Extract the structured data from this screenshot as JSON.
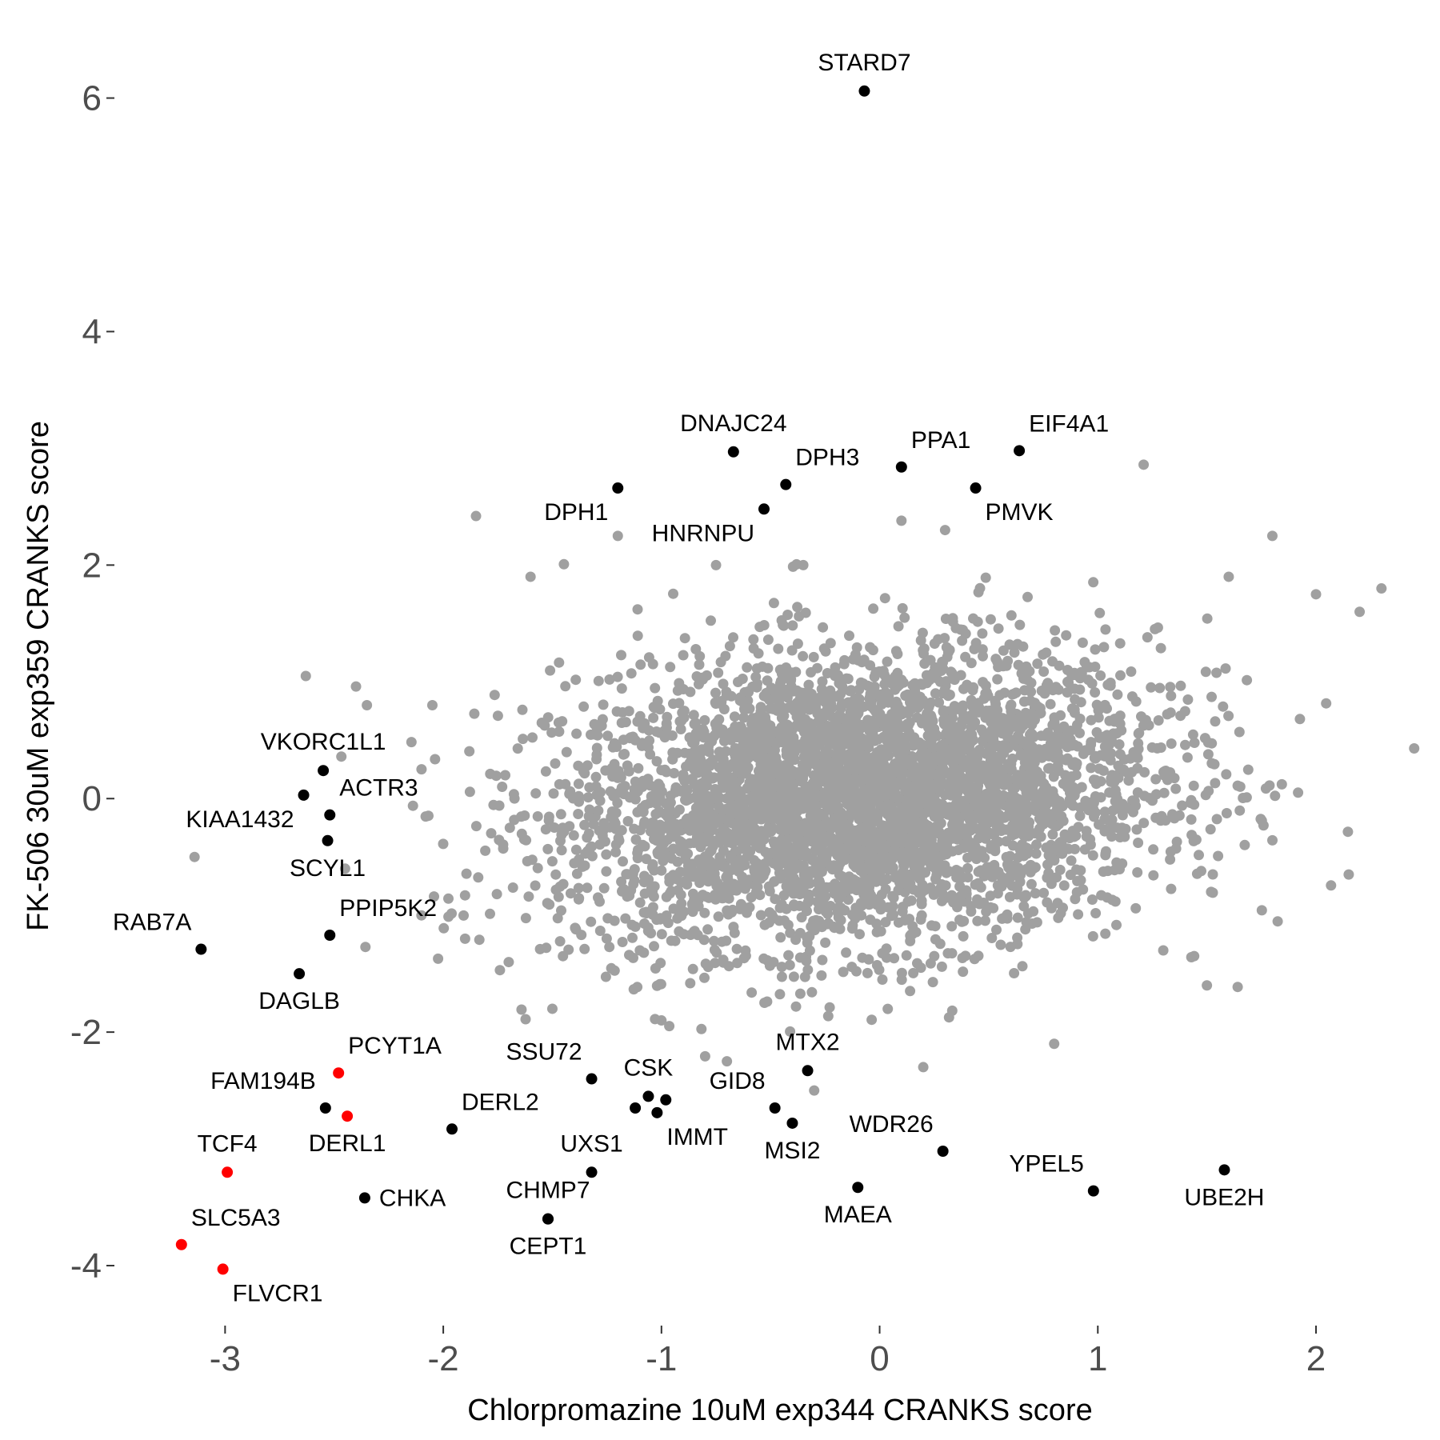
{
  "chart_data": {
    "type": "scatter",
    "xlabel": "Chlorpromazine 10uM exp344 CRANKS score",
    "ylabel": "FK-506 30uM exp359 CRANKS score",
    "xlim": [
      -3.5,
      2.55
    ],
    "ylim": [
      -4.5,
      6.6
    ],
    "x_ticks": [
      -3,
      -2,
      -1,
      0,
      1,
      2
    ],
    "y_ticks": [
      -4,
      -2,
      0,
      2,
      4,
      6
    ],
    "x_tick_labels": [
      "-3",
      "-2",
      "-1",
      "0",
      "1",
      "2"
    ],
    "y_tick_labels": [
      "-4",
      "-2",
      "0",
      "2",
      "4",
      "6"
    ],
    "grid": false,
    "colors": {
      "background_points": "#a0a0a0",
      "highlight_black": "#000000",
      "highlight_red": "#ff0000"
    },
    "background_cloud": {
      "description_free": true,
      "center": [
        -0.1,
        0.0
      ],
      "spread": [
        0.68,
        0.62
      ],
      "outliers": [
        [
          -1.85,
          2.42
        ],
        [
          -1.2,
          2.25
        ],
        [
          1.21,
          2.86
        ],
        [
          1.8,
          2.25
        ],
        [
          2.3,
          1.8
        ],
        [
          2.45,
          0.43
        ],
        [
          2.15,
          -0.65
        ],
        [
          -2.63,
          1.05
        ],
        [
          -3.14,
          -0.5
        ],
        [
          -2.35,
          0.8
        ],
        [
          -1.6,
          1.9
        ],
        [
          -2.05,
          0.8
        ],
        [
          0.1,
          2.38
        ],
        [
          0.3,
          2.3
        ],
        [
          -0.35,
          2.0
        ],
        [
          -0.75,
          2.0
        ],
        [
          1.6,
          1.9
        ],
        [
          2.0,
          1.75
        ],
        [
          2.2,
          1.6
        ],
        [
          1.3,
          -1.3
        ],
        [
          -1.0,
          -1.9
        ],
        [
          -0.3,
          -2.5
        ],
        [
          -0.7,
          -2.25
        ],
        [
          0.2,
          -2.3
        ],
        [
          0.8,
          -2.1
        ],
        [
          -2.45,
          -0.6
        ],
        [
          -2.1,
          -1.0
        ],
        [
          -1.9,
          -1.2
        ],
        [
          -1.7,
          -1.4
        ],
        [
          -1.5,
          -1.8
        ],
        [
          1.5,
          -1.6
        ]
      ]
    },
    "highlighted_genes": [
      {
        "name": "STARD7",
        "x": -0.07,
        "y": 6.06,
        "color": "black",
        "label_pos": "above"
      },
      {
        "name": "DNAJC24",
        "x": -0.67,
        "y": 2.97,
        "color": "black",
        "label_pos": "above"
      },
      {
        "name": "DPH3",
        "x": -0.43,
        "y": 2.69,
        "color": "black",
        "label_pos": "above-right"
      },
      {
        "name": "PPA1",
        "x": 0.1,
        "y": 2.84,
        "color": "black",
        "label_pos": "above-right"
      },
      {
        "name": "EIF4A1",
        "x": 0.64,
        "y": 2.98,
        "color": "black",
        "label_pos": "above-right"
      },
      {
        "name": "DPH1",
        "x": -1.2,
        "y": 2.66,
        "color": "black",
        "label_pos": "below-left"
      },
      {
        "name": "HNRNPU",
        "x": -0.53,
        "y": 2.48,
        "color": "black",
        "label_pos": "below-left"
      },
      {
        "name": "PMVK",
        "x": 0.44,
        "y": 2.66,
        "color": "black",
        "label_pos": "below-right"
      },
      {
        "name": "VKORC1L1",
        "x": -2.55,
        "y": 0.24,
        "color": "black",
        "label_pos": "above"
      },
      {
        "name": "ACTR3",
        "x": -2.52,
        "y": -0.14,
        "color": "black",
        "label_pos": "above-right"
      },
      {
        "name": "KIAA1432",
        "x": -2.64,
        "y": 0.03,
        "color": "black",
        "label_pos": "below-left"
      },
      {
        "name": "SCYL1",
        "x": -2.53,
        "y": -0.36,
        "color": "black",
        "label_pos": "below"
      },
      {
        "name": "PPIP5K2",
        "x": -2.52,
        "y": -1.17,
        "color": "black",
        "label_pos": "above-right"
      },
      {
        "name": "RAB7A",
        "x": -3.11,
        "y": -1.29,
        "color": "black",
        "label_pos": "above-left"
      },
      {
        "name": "DAGLB",
        "x": -2.66,
        "y": -1.5,
        "color": "black",
        "label_pos": "below"
      },
      {
        "name": "PCYT1A",
        "x": -2.48,
        "y": -2.35,
        "color": "red",
        "label_pos": "above-right"
      },
      {
        "name": "FAM194B",
        "x": -2.54,
        "y": -2.65,
        "color": "black",
        "label_pos": "above-left"
      },
      {
        "name": "DERL1",
        "x": -2.44,
        "y": -2.72,
        "color": "red",
        "label_pos": "below"
      },
      {
        "name": "DERL2",
        "x": -1.96,
        "y": -2.83,
        "color": "black",
        "label_pos": "above-right"
      },
      {
        "name": "TCF4",
        "x": -2.99,
        "y": -3.2,
        "color": "red",
        "label_pos": "above"
      },
      {
        "name": "CHKA",
        "x": -2.36,
        "y": -3.42,
        "color": "black",
        "label_pos": "right"
      },
      {
        "name": "SLC5A3",
        "x": -3.2,
        "y": -3.82,
        "color": "red",
        "label_pos": "above-right"
      },
      {
        "name": "FLVCR1",
        "x": -3.01,
        "y": -4.03,
        "color": "red",
        "label_pos": "below-right"
      },
      {
        "name": "SSU72",
        "x": -1.32,
        "y": -2.4,
        "color": "black",
        "label_pos": "above-left"
      },
      {
        "name": "CSK",
        "x": -1.06,
        "y": -2.55,
        "color": "black",
        "label_pos": "above"
      },
      {
        "name": "MTX2",
        "x": -0.33,
        "y": -2.33,
        "color": "black",
        "label_pos": "above"
      },
      {
        "name": "GID8",
        "x": -0.48,
        "y": -2.65,
        "color": "black",
        "label_pos": "above-left"
      },
      {
        "name": "MSI2",
        "x": -0.4,
        "y": -2.78,
        "color": "black",
        "label_pos": "below"
      },
      {
        "name": "IMMT",
        "x": -1.02,
        "y": -2.69,
        "color": "black",
        "label_pos": "below-right"
      },
      {
        "name": "UXS1",
        "x": -1.32,
        "y": -3.2,
        "color": "black",
        "label_pos": "above"
      },
      {
        "name": "CHMP7",
        "x": -1.52,
        "y": -3.6,
        "color": "black",
        "label_pos": "above"
      },
      {
        "name": "CEPT1",
        "x": -1.52,
        "y": -3.6,
        "color": "black",
        "label_pos": "below"
      },
      {
        "name": "WDR26",
        "x": 0.29,
        "y": -3.02,
        "color": "black",
        "label_pos": "above-left"
      },
      {
        "name": "MAEA",
        "x": -0.1,
        "y": -3.33,
        "color": "black",
        "label_pos": "below"
      },
      {
        "name": "YPEL5",
        "x": 0.98,
        "y": -3.36,
        "color": "black",
        "label_pos": "above-left"
      },
      {
        "name": "UBE2H",
        "x": 1.58,
        "y": -3.18,
        "color": "black",
        "label_pos": "below"
      }
    ],
    "extra_black_points": [
      {
        "x": -1.12,
        "y": -2.65
      },
      {
        "x": -0.98,
        "y": -2.58
      }
    ]
  }
}
